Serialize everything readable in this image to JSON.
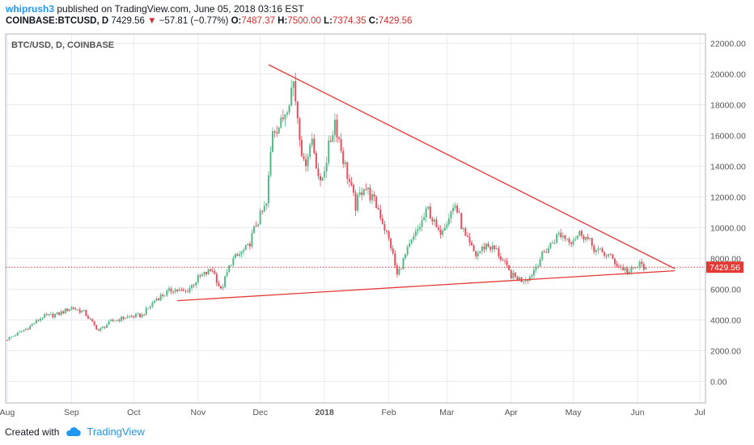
{
  "header": {
    "user": "whiprush3",
    "published_text": "published on TradingView.com, June 05, 2018 03:16 EST",
    "symbol": "COINBASE:BTCUSD, D",
    "last": "7429.56",
    "change_arrow": "▼",
    "change": "−57.81 (−0.77%)",
    "o_label": "O:",
    "o_value": "7487.37",
    "h_label": "H:",
    "h_value": "7500.00",
    "l_label": "L:",
    "l_value": "7374.35",
    "c_label": "C:",
    "c_value": "7429.56"
  },
  "footer": {
    "created_with": "Created with",
    "brand": "TradingView"
  },
  "colors": {
    "up": "#53b987",
    "down": "#eb4d5c",
    "trendline": "#e53935",
    "price_label_bg": "#e53935",
    "grid": "#e8eaf0",
    "axis_text": "#555555"
  },
  "chart_data": {
    "type": "candlestick",
    "title": "BTC/USD, D, COINBASE",
    "x_ticks": [
      "Aug",
      "Sep",
      "Oct",
      "Nov",
      "Dec",
      "2018",
      "Feb",
      "Mar",
      "Apr",
      "May",
      "Jun",
      "Jul"
    ],
    "y_ticks": [
      "0.00",
      "2000.00",
      "4000.00",
      "6000.00",
      "8000.00",
      "10000.00",
      "12000.00",
      "14000.00",
      "16000.00",
      "18000.00",
      "20000.00",
      "22000.00"
    ],
    "ylim": [
      -1400,
      22600
    ],
    "last_price": 7429.56,
    "last_price_label": "7429.56",
    "grid": true,
    "close_anchors": [
      {
        "date": "2017-08-01",
        "close": 2750
      },
      {
        "date": "2017-08-10",
        "close": 3400
      },
      {
        "date": "2017-08-18",
        "close": 4200
      },
      {
        "date": "2017-08-25",
        "close": 4350
      },
      {
        "date": "2017-09-01",
        "close": 4800
      },
      {
        "date": "2017-09-07",
        "close": 4500
      },
      {
        "date": "2017-09-14",
        "close": 3300
      },
      {
        "date": "2017-09-20",
        "close": 3900
      },
      {
        "date": "2017-09-28",
        "close": 4200
      },
      {
        "date": "2017-10-05",
        "close": 4300
      },
      {
        "date": "2017-10-12",
        "close": 5400
      },
      {
        "date": "2017-10-20",
        "close": 6000
      },
      {
        "date": "2017-10-26",
        "close": 5800
      },
      {
        "date": "2017-11-01",
        "close": 6700
      },
      {
        "date": "2017-11-08",
        "close": 7300
      },
      {
        "date": "2017-11-12",
        "close": 5900
      },
      {
        "date": "2017-11-17",
        "close": 7800
      },
      {
        "date": "2017-11-25",
        "close": 8700
      },
      {
        "date": "2017-11-29",
        "close": 10200
      },
      {
        "date": "2017-12-04",
        "close": 11500
      },
      {
        "date": "2017-12-07",
        "close": 16500
      },
      {
        "date": "2017-12-11",
        "close": 16700
      },
      {
        "date": "2017-12-17",
        "close": 19500
      },
      {
        "date": "2017-12-22",
        "close": 14000
      },
      {
        "date": "2017-12-26",
        "close": 15800
      },
      {
        "date": "2017-12-30",
        "close": 12700
      },
      {
        "date": "2018-01-06",
        "close": 17000
      },
      {
        "date": "2018-01-10",
        "close": 14500
      },
      {
        "date": "2018-01-16",
        "close": 11400
      },
      {
        "date": "2018-01-20",
        "close": 12800
      },
      {
        "date": "2018-01-27",
        "close": 11200
      },
      {
        "date": "2018-02-02",
        "close": 8800
      },
      {
        "date": "2018-02-05",
        "close": 6900
      },
      {
        "date": "2018-02-10",
        "close": 8500
      },
      {
        "date": "2018-02-20",
        "close": 11200
      },
      {
        "date": "2018-02-25",
        "close": 9600
      },
      {
        "date": "2018-03-05",
        "close": 11500
      },
      {
        "date": "2018-03-10",
        "close": 9300
      },
      {
        "date": "2018-03-15",
        "close": 8200
      },
      {
        "date": "2018-03-20",
        "close": 8900
      },
      {
        "date": "2018-03-25",
        "close": 8500
      },
      {
        "date": "2018-04-01",
        "close": 6900
      },
      {
        "date": "2018-04-06",
        "close": 6600
      },
      {
        "date": "2018-04-10",
        "close": 6800
      },
      {
        "date": "2018-04-15",
        "close": 8000
      },
      {
        "date": "2018-04-24",
        "close": 9600
      },
      {
        "date": "2018-04-30",
        "close": 9200
      },
      {
        "date": "2018-05-05",
        "close": 9700
      },
      {
        "date": "2018-05-12",
        "close": 8500
      },
      {
        "date": "2018-05-18",
        "close": 8200
      },
      {
        "date": "2018-05-23",
        "close": 7500
      },
      {
        "date": "2018-05-28",
        "close": 7100
      },
      {
        "date": "2018-06-02",
        "close": 7600
      },
      {
        "date": "2018-06-05",
        "close": 7429.56
      }
    ],
    "trendlines": [
      {
        "name": "descending",
        "from": {
          "date": "2017-12-05",
          "price": 20600
        },
        "to": {
          "date": "2018-06-19",
          "price": 7330
        }
      },
      {
        "name": "ascending",
        "from": {
          "date": "2017-10-22",
          "price": 5250
        },
        "to": {
          "date": "2018-06-19",
          "price": 7200
        }
      }
    ]
  }
}
